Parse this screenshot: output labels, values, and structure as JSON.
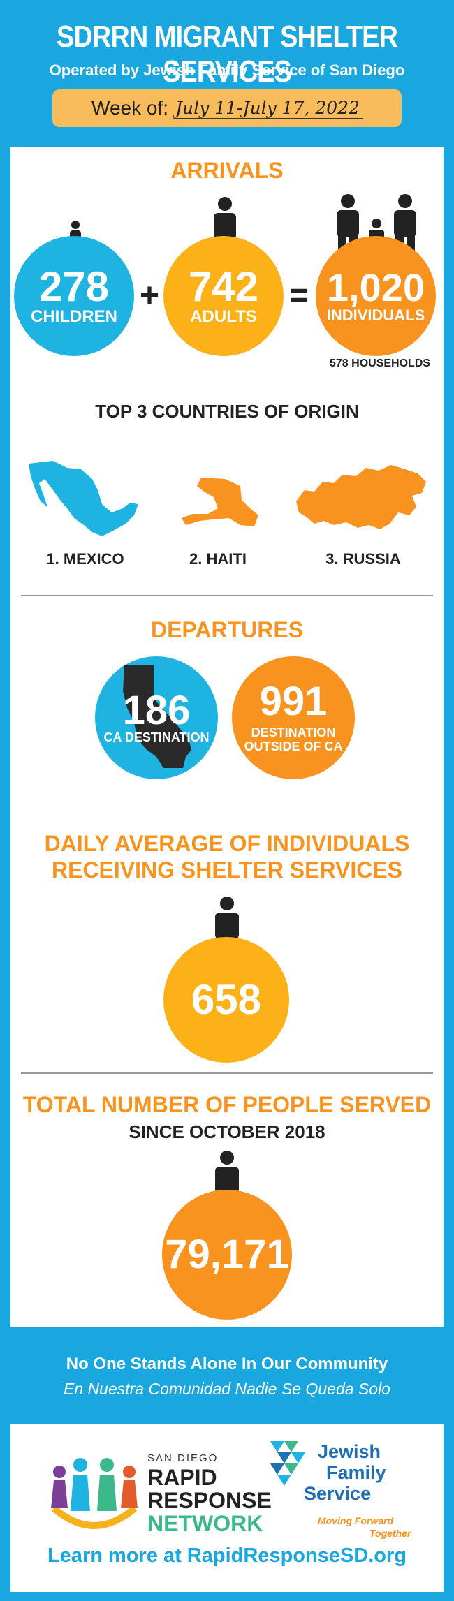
{
  "header": {
    "title": "SDRRN MIGRANT SHELTER SERVICES",
    "subtitle": "Operated by Jewish Family Service of San Diego",
    "week_label": "Week of:",
    "week_value": "July 11-July 17, 2022"
  },
  "arrivals": {
    "heading": "ARRIVALS",
    "children_value": "278",
    "children_label": "CHILDREN",
    "plus": "+",
    "adults_value": "742",
    "adults_label": "ADULTS",
    "equals": "=",
    "individuals_value": "1,020",
    "individuals_label": "INDIVIDUALS",
    "households": "578 HOUSEHOLDS"
  },
  "countries": {
    "heading": "TOP 3 COUNTRIES OF ORIGIN",
    "items": [
      "1. MEXICO",
      "2. HAITI",
      "3. RUSSIA"
    ]
  },
  "departures": {
    "heading": "DEPARTURES",
    "ca_value": "186",
    "ca_label": "CA DESTINATION",
    "outside_value": "991",
    "outside_label_1": "DESTINATION",
    "outside_label_2": "OUTSIDE OF CA"
  },
  "daily": {
    "heading_1": "DAILY AVERAGE OF INDIVIDUALS",
    "heading_2": "RECEIVING SHELTER SERVICES",
    "value": "658"
  },
  "total": {
    "heading_1": "TOTAL NUMBER OF PEOPLE SERVED",
    "heading_2": "SINCE OCTOBER 2018",
    "value": "79,171"
  },
  "footer": {
    "tagline_en": "No One Stands Alone In Our Community",
    "tagline_es": "En Nuestra Comunidad Nadie Se Queda Solo",
    "rrn_small": "SAN DIEGO",
    "rrn_1": "RAPID",
    "rrn_2": "RESPONSE",
    "rrn_3": "NETWORK",
    "jfs_1": "Jewish",
    "jfs_2": "Family",
    "jfs_3": "Service",
    "jfs_tag_1": "Moving Forward",
    "jfs_tag_2": "Together",
    "learn_more": "Learn more at RapidResponseSD.org"
  },
  "colors": {
    "background": "#1aa6de",
    "blue_circle": "#1eb3e0",
    "orange_circle": "#f7931e",
    "gold_circle": "#fbb117",
    "week_box": "#f8bc5c"
  }
}
